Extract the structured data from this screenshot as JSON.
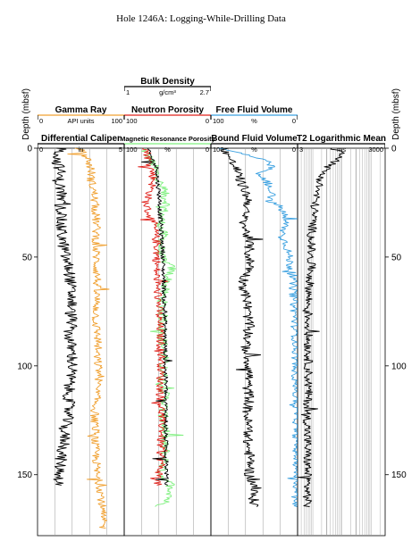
{
  "title": "Hole 1246A: Logging-While-Drilling Data",
  "depth_axis": {
    "label": "Depth (mbsf)",
    "ticks": [
      0,
      50,
      100,
      150
    ],
    "range": [
      0,
      178
    ],
    "inverted": true
  },
  "colors": {
    "black": "#000000",
    "orange": "#f0a030",
    "red": "#e0201a",
    "green": "#7ff07f",
    "blue": "#3aa0e0",
    "grid": "#999999"
  },
  "tracks": [
    {
      "id": "track1",
      "headers": [
        {
          "name": "Gamma Ray",
          "unit": "API units",
          "min": "0",
          "max": "100",
          "color": "#f0a030"
        },
        {
          "name": "Differential Caliper",
          "unit": "in",
          "min": "0",
          "max": "5",
          "color": "#000000"
        }
      ]
    },
    {
      "id": "track2",
      "headers": [
        {
          "name": "Bulk Density",
          "unit": "g/cm³",
          "min": "1",
          "max": "2.7",
          "color": "#000000"
        },
        {
          "name": "Neutron Porosity",
          "unit": "",
          "min": "100",
          "max": "0",
          "color": "#e0201a"
        },
        {
          "name": "Magnetic Resonance Porosity",
          "unit": "%",
          "min": "100",
          "max": "0",
          "color": "#7ff07f"
        }
      ]
    },
    {
      "id": "track3",
      "headers": [
        {
          "name": "Free Fluid Volume",
          "unit": "%",
          "min": "100",
          "max": "0",
          "color": "#3aa0e0"
        },
        {
          "name": "Bound Fluid Volume",
          "unit": "%",
          "min": "100",
          "max": "0",
          "color": "#000000"
        }
      ]
    },
    {
      "id": "track4",
      "headers": [
        {
          "name": "T2 Logarithmic Mean",
          "unit": "ms",
          "min": "3",
          "max": "3000",
          "color": "#000000"
        }
      ]
    }
  ],
  "chart_data": {
    "type": "line",
    "title": "Hole 1246A: Logging-While-Drilling Data",
    "ylabel": "Depth (mbsf)",
    "ylim": [
      0,
      178
    ],
    "series": [
      {
        "name": "Gamma Ray",
        "unit": "API units",
        "range": [
          0,
          100
        ],
        "color": "#f0a030",
        "depth": [
          0,
          5,
          10,
          15,
          20,
          25,
          30,
          35,
          40,
          45,
          50,
          55,
          60,
          65,
          70,
          75,
          80,
          85,
          90,
          95,
          100,
          105,
          110,
          115,
          120,
          125,
          130,
          135,
          140,
          145,
          150,
          155,
          160,
          165,
          170,
          175
        ],
        "values": [
          48,
          58,
          62,
          62,
          65,
          66,
          67,
          68,
          68,
          67,
          68,
          68,
          69,
          68,
          68,
          68,
          67,
          69,
          70,
          68,
          70,
          72,
          68,
          68,
          66,
          66,
          67,
          66,
          67,
          68,
          68,
          72,
          74,
          74,
          75,
          76
        ]
      },
      {
        "name": "Differential Caliper",
        "unit": "in",
        "range": [
          0,
          5
        ],
        "color": "#000000",
        "depth": [
          0,
          5,
          10,
          15,
          20,
          25,
          30,
          35,
          40,
          45,
          50,
          55,
          60,
          65,
          70,
          75,
          80,
          85,
          90,
          95,
          100,
          105,
          110,
          115,
          120,
          125,
          130,
          135,
          140,
          145,
          150,
          155
        ],
        "values": [
          1.4,
          1.1,
          1.3,
          1.2,
          1.4,
          1.3,
          1.4,
          1.3,
          1.4,
          1.5,
          1.6,
          1.8,
          1.9,
          1.9,
          2.0,
          1.9,
          2.0,
          1.8,
          1.9,
          2.0,
          2.0,
          1.9,
          1.8,
          1.8,
          1.8,
          1.7,
          1.5,
          1.6,
          1.4,
          1.3,
          1.3,
          1.2
        ]
      },
      {
        "name": "Bulk Density",
        "unit": "g/cm³",
        "range": [
          1,
          2.7
        ],
        "color": "#000000",
        "depth": [
          0,
          5,
          10,
          15,
          20,
          25,
          30,
          35,
          40,
          45,
          50,
          55,
          60,
          65,
          70,
          75,
          80,
          85,
          90,
          95,
          100,
          105,
          110,
          115,
          120,
          125,
          130,
          135,
          140,
          145,
          150,
          155
        ],
        "values": [
          1.45,
          1.55,
          1.65,
          1.65,
          1.68,
          1.7,
          1.7,
          1.72,
          1.73,
          1.75,
          1.76,
          1.76,
          1.78,
          1.78,
          1.78,
          1.79,
          1.8,
          1.8,
          1.8,
          1.81,
          1.8,
          1.81,
          1.82,
          1.8,
          1.82,
          1.82,
          1.81,
          1.82,
          1.82,
          1.83,
          1.83,
          1.82
        ]
      },
      {
        "name": "Neutron Porosity",
        "unit": "%",
        "range": [
          100,
          0
        ],
        "color": "#e0201a",
        "depth": [
          0,
          5,
          10,
          15,
          20,
          25,
          30,
          35,
          40,
          45,
          50,
          55,
          60,
          65,
          70,
          75,
          80,
          85,
          90,
          95,
          100,
          105,
          110,
          115,
          120,
          125,
          130,
          135,
          140,
          145,
          150,
          155
        ],
        "values": [
          74,
          72,
          68,
          66,
          70,
          75,
          72,
          66,
          64,
          62,
          62,
          63,
          62,
          62,
          60,
          60,
          60,
          58,
          58,
          57,
          57,
          58,
          58,
          58,
          57,
          57,
          56,
          58,
          58,
          57,
          60,
          62
        ]
      },
      {
        "name": "Magnetic Resonance Porosity",
        "unit": "%",
        "range": [
          100,
          0
        ],
        "color": "#7ff07f",
        "depth": [
          0,
          5,
          10,
          15,
          20,
          25,
          30,
          35,
          40,
          45,
          50,
          55,
          60,
          65,
          70,
          75,
          80,
          85,
          90,
          95,
          100,
          105,
          110,
          115,
          120,
          125,
          130,
          135,
          140,
          145,
          150,
          155,
          160,
          165
        ],
        "values": [
          78,
          70,
          64,
          60,
          55,
          50,
          56,
          58,
          55,
          58,
          58,
          45,
          50,
          54,
          56,
          56,
          55,
          56,
          55,
          54,
          55,
          55,
          55,
          52,
          55,
          55,
          52,
          55,
          52,
          54,
          58,
          45,
          46,
          60
        ]
      },
      {
        "name": "Free Fluid Volume",
        "unit": "%",
        "range": [
          100,
          0
        ],
        "color": "#3aa0e0",
        "depth": [
          0,
          3,
          6,
          9,
          12,
          15,
          18,
          21,
          24,
          27,
          30,
          35,
          40,
          45,
          50,
          55,
          60,
          70,
          80,
          90,
          100,
          110,
          120,
          130,
          140,
          150,
          160,
          165
        ],
        "values": [
          92,
          58,
          36,
          30,
          48,
          36,
          34,
          26,
          34,
          20,
          16,
          14,
          18,
          12,
          10,
          8,
          6,
          4,
          3,
          2,
          2,
          2,
          1,
          1,
          1,
          1,
          1,
          1
        ]
      },
      {
        "name": "Bound Fluid Volume",
        "unit": "%",
        "range": [
          100,
          0
        ],
        "color": "#000000",
        "depth": [
          0,
          5,
          10,
          15,
          20,
          25,
          30,
          35,
          40,
          45,
          50,
          55,
          60,
          65,
          70,
          75,
          80,
          85,
          90,
          95,
          100,
          105,
          110,
          115,
          120,
          125,
          130,
          135,
          140,
          145,
          150,
          155,
          160,
          165
        ],
        "values": [
          84,
          78,
          70,
          66,
          60,
          56,
          62,
          62,
          58,
          56,
          56,
          54,
          62,
          62,
          58,
          58,
          56,
          56,
          60,
          58,
          56,
          56,
          58,
          55,
          58,
          58,
          56,
          58,
          56,
          54,
          56,
          50,
          52,
          48
        ]
      },
      {
        "name": "T2 Logarithmic Mean",
        "unit": "ms",
        "range": [
          3,
          3000
        ],
        "scale": "log",
        "color": "#000000",
        "depth": [
          0,
          3,
          6,
          9,
          12,
          15,
          20,
          25,
          30,
          35,
          40,
          45,
          50,
          55,
          60,
          70,
          80,
          90,
          100,
          110,
          120,
          130,
          140,
          150,
          160,
          165
        ],
        "values": [
          40,
          120,
          60,
          30,
          20,
          18,
          14,
          12,
          11,
          10,
          9,
          9,
          8,
          9,
          8,
          7,
          7,
          7,
          7,
          7,
          6.5,
          6.5,
          6.5,
          6.5,
          6.5,
          6.5
        ]
      }
    ]
  }
}
